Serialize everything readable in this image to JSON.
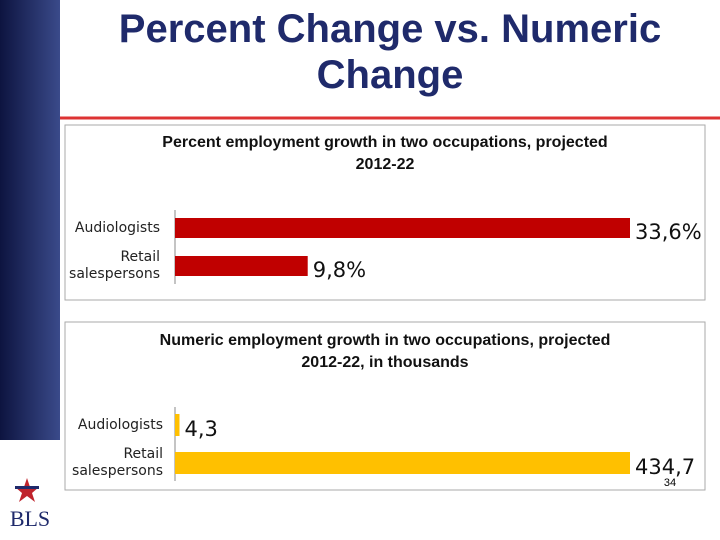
{
  "slide": {
    "title": "Percent Change vs. Numeric Change",
    "page_number": "34",
    "logo": "BLS"
  },
  "chart_data": [
    {
      "type": "bar",
      "orientation": "horizontal",
      "title": "Percent employment growth in two occupations, projected 2012-22",
      "categories": [
        "Audiologists",
        "Retail salespersons"
      ],
      "values": [
        33.6,
        9.8
      ],
      "value_labels": [
        "33,6%",
        "9,8%"
      ],
      "color": "#c00000"
    },
    {
      "type": "bar",
      "orientation": "horizontal",
      "title": "Numeric employment growth in two occupations, projected 2012-22, in thousands",
      "categories": [
        "Audiologists",
        "Retail salespersons"
      ],
      "values": [
        4.3,
        434.7
      ],
      "value_labels": [
        "4,3",
        "434,7"
      ],
      "color": "#ffc000"
    }
  ]
}
